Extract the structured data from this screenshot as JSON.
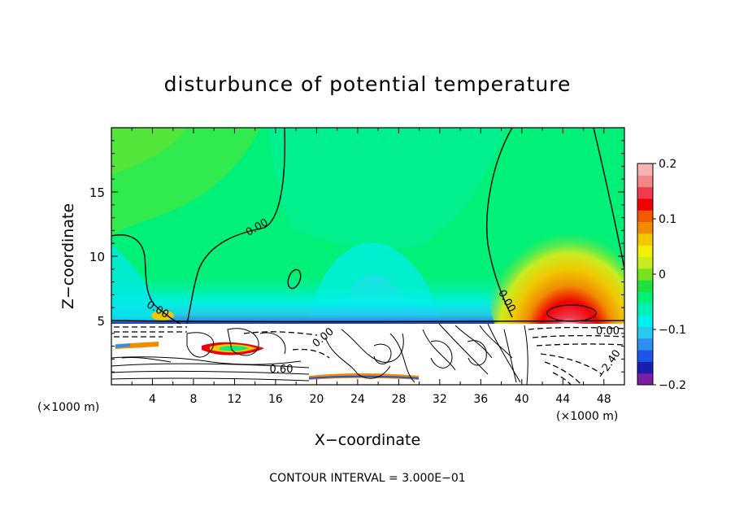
{
  "chart_data": {
    "type": "heatmap",
    "title": "disturbunce of potential temperature",
    "xlabel": "X−coordinate",
    "ylabel": "Z−coordinate",
    "x_unit_left": "(×1000 m)",
    "x_unit_right": "(×1000 m)",
    "xlim": [
      0,
      50
    ],
    "ylim": [
      0,
      20
    ],
    "x_ticks": [
      4,
      8,
      12,
      16,
      20,
      24,
      28,
      32,
      36,
      40,
      44,
      48
    ],
    "y_ticks": [
      5,
      10,
      15
    ],
    "colorbar": {
      "range": [
        -0.2,
        0.2
      ],
      "tick_labels": [
        "0.2",
        "0.1",
        "0",
        "−0.1",
        "−0.2"
      ],
      "tick_values": [
        0.2,
        0.1,
        0,
        -0.1,
        -0.2
      ],
      "colors": [
        "#7a1fa2",
        "#1c1cb0",
        "#1e55e6",
        "#2f8ff0",
        "#28c9f0",
        "#00f0ec",
        "#00f0b8",
        "#00f07a",
        "#20e040",
        "#7ae020",
        "#c8ec20",
        "#f0f000",
        "#f0c800",
        "#f08c00",
        "#f05a00",
        "#f00000",
        "#f03c50",
        "#f08888",
        "#f4b4b4"
      ]
    },
    "contour_labels": [
      "0.00",
      "0.00",
      "0.00",
      "0.00",
      "0.00",
      "0.60",
      "−2.40"
    ],
    "footer": "CONTOUR INTERVAL = 3.000E−01"
  }
}
